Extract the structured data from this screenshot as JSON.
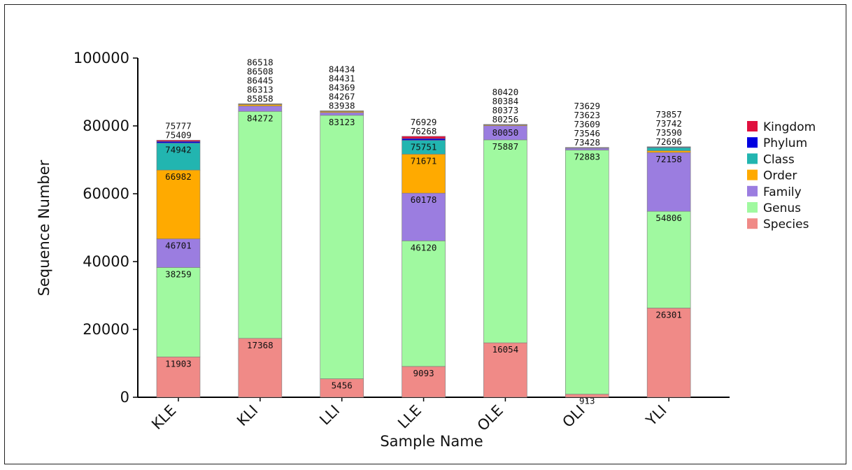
{
  "chart_data": {
    "type": "bar",
    "stacked": true,
    "title": "",
    "xlabel": "Sample Name",
    "ylabel": "Sequence Number",
    "ylim": [
      0,
      100000
    ],
    "yticks": [
      0,
      20000,
      40000,
      60000,
      80000,
      100000
    ],
    "categories": [
      "KLE",
      "KLI",
      "LLI",
      "LLE",
      "OLE",
      "OLI",
      "YLI"
    ],
    "legend_position": "right",
    "series": [
      {
        "name": "Species",
        "color": "#f08a87",
        "cumulative": [
          11903,
          17368,
          5456,
          9093,
          16054,
          913,
          26301
        ]
      },
      {
        "name": "Genus",
        "color": "#a0f9a0",
        "cumulative": [
          38259,
          84272,
          83123,
          46120,
          75887,
          72883,
          54806
        ]
      },
      {
        "name": "Family",
        "color": "#9b7de0",
        "cumulative": [
          46701,
          85858,
          83938,
          60178,
          80050,
          73428,
          72158
        ]
      },
      {
        "name": "Order",
        "color": "#ffaa00",
        "cumulative": [
          66982,
          86313,
          84267,
          71671,
          80256,
          73546,
          72696
        ]
      },
      {
        "name": "Class",
        "color": "#22b5b0",
        "cumulative": [
          74942,
          86445,
          84369,
          75751,
          80373,
          73609,
          73590
        ]
      },
      {
        "name": "Phylum",
        "color": "#0000e0",
        "cumulative": [
          75409,
          86508,
          84431,
          76268,
          80384,
          73623,
          73742
        ]
      },
      {
        "name": "Kingdom",
        "color": "#e0103e",
        "cumulative": [
          75777,
          86518,
          84434,
          76929,
          80420,
          73629,
          73857
        ]
      }
    ],
    "legend_order": [
      "Kingdom",
      "Phylum",
      "Class",
      "Order",
      "Family",
      "Genus",
      "Species"
    ]
  }
}
